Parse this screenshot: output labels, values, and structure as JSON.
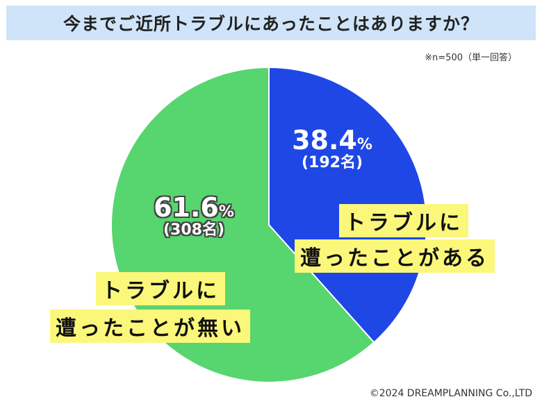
{
  "title": "今までご近所トラブルにあったことはありますか？",
  "note": "※n=500（単一回答）",
  "credit": "©2024 DREAMPLANNING Co.,LTD",
  "colors": {
    "had_trouble": "#1f47e6",
    "no_trouble": "#57d56f",
    "title_bg": "#cfe4f8",
    "label_bg": "#fbf77a"
  },
  "chart_data": {
    "type": "pie",
    "title": "今までご近所トラブルにあったことはありますか？",
    "total": 500,
    "slices": [
      {
        "label_line1": "トラブルに",
        "label_line2": "遭ったことがある",
        "percent": 38.4,
        "percent_text": "38.4",
        "unit": "%",
        "count_text": "(192名)"
      },
      {
        "label_line1": "トラブルに",
        "label_line2": "遭ったことが無い",
        "percent": 61.6,
        "percent_text": "61.6",
        "unit": "%",
        "count_text": "(308名)"
      }
    ]
  }
}
